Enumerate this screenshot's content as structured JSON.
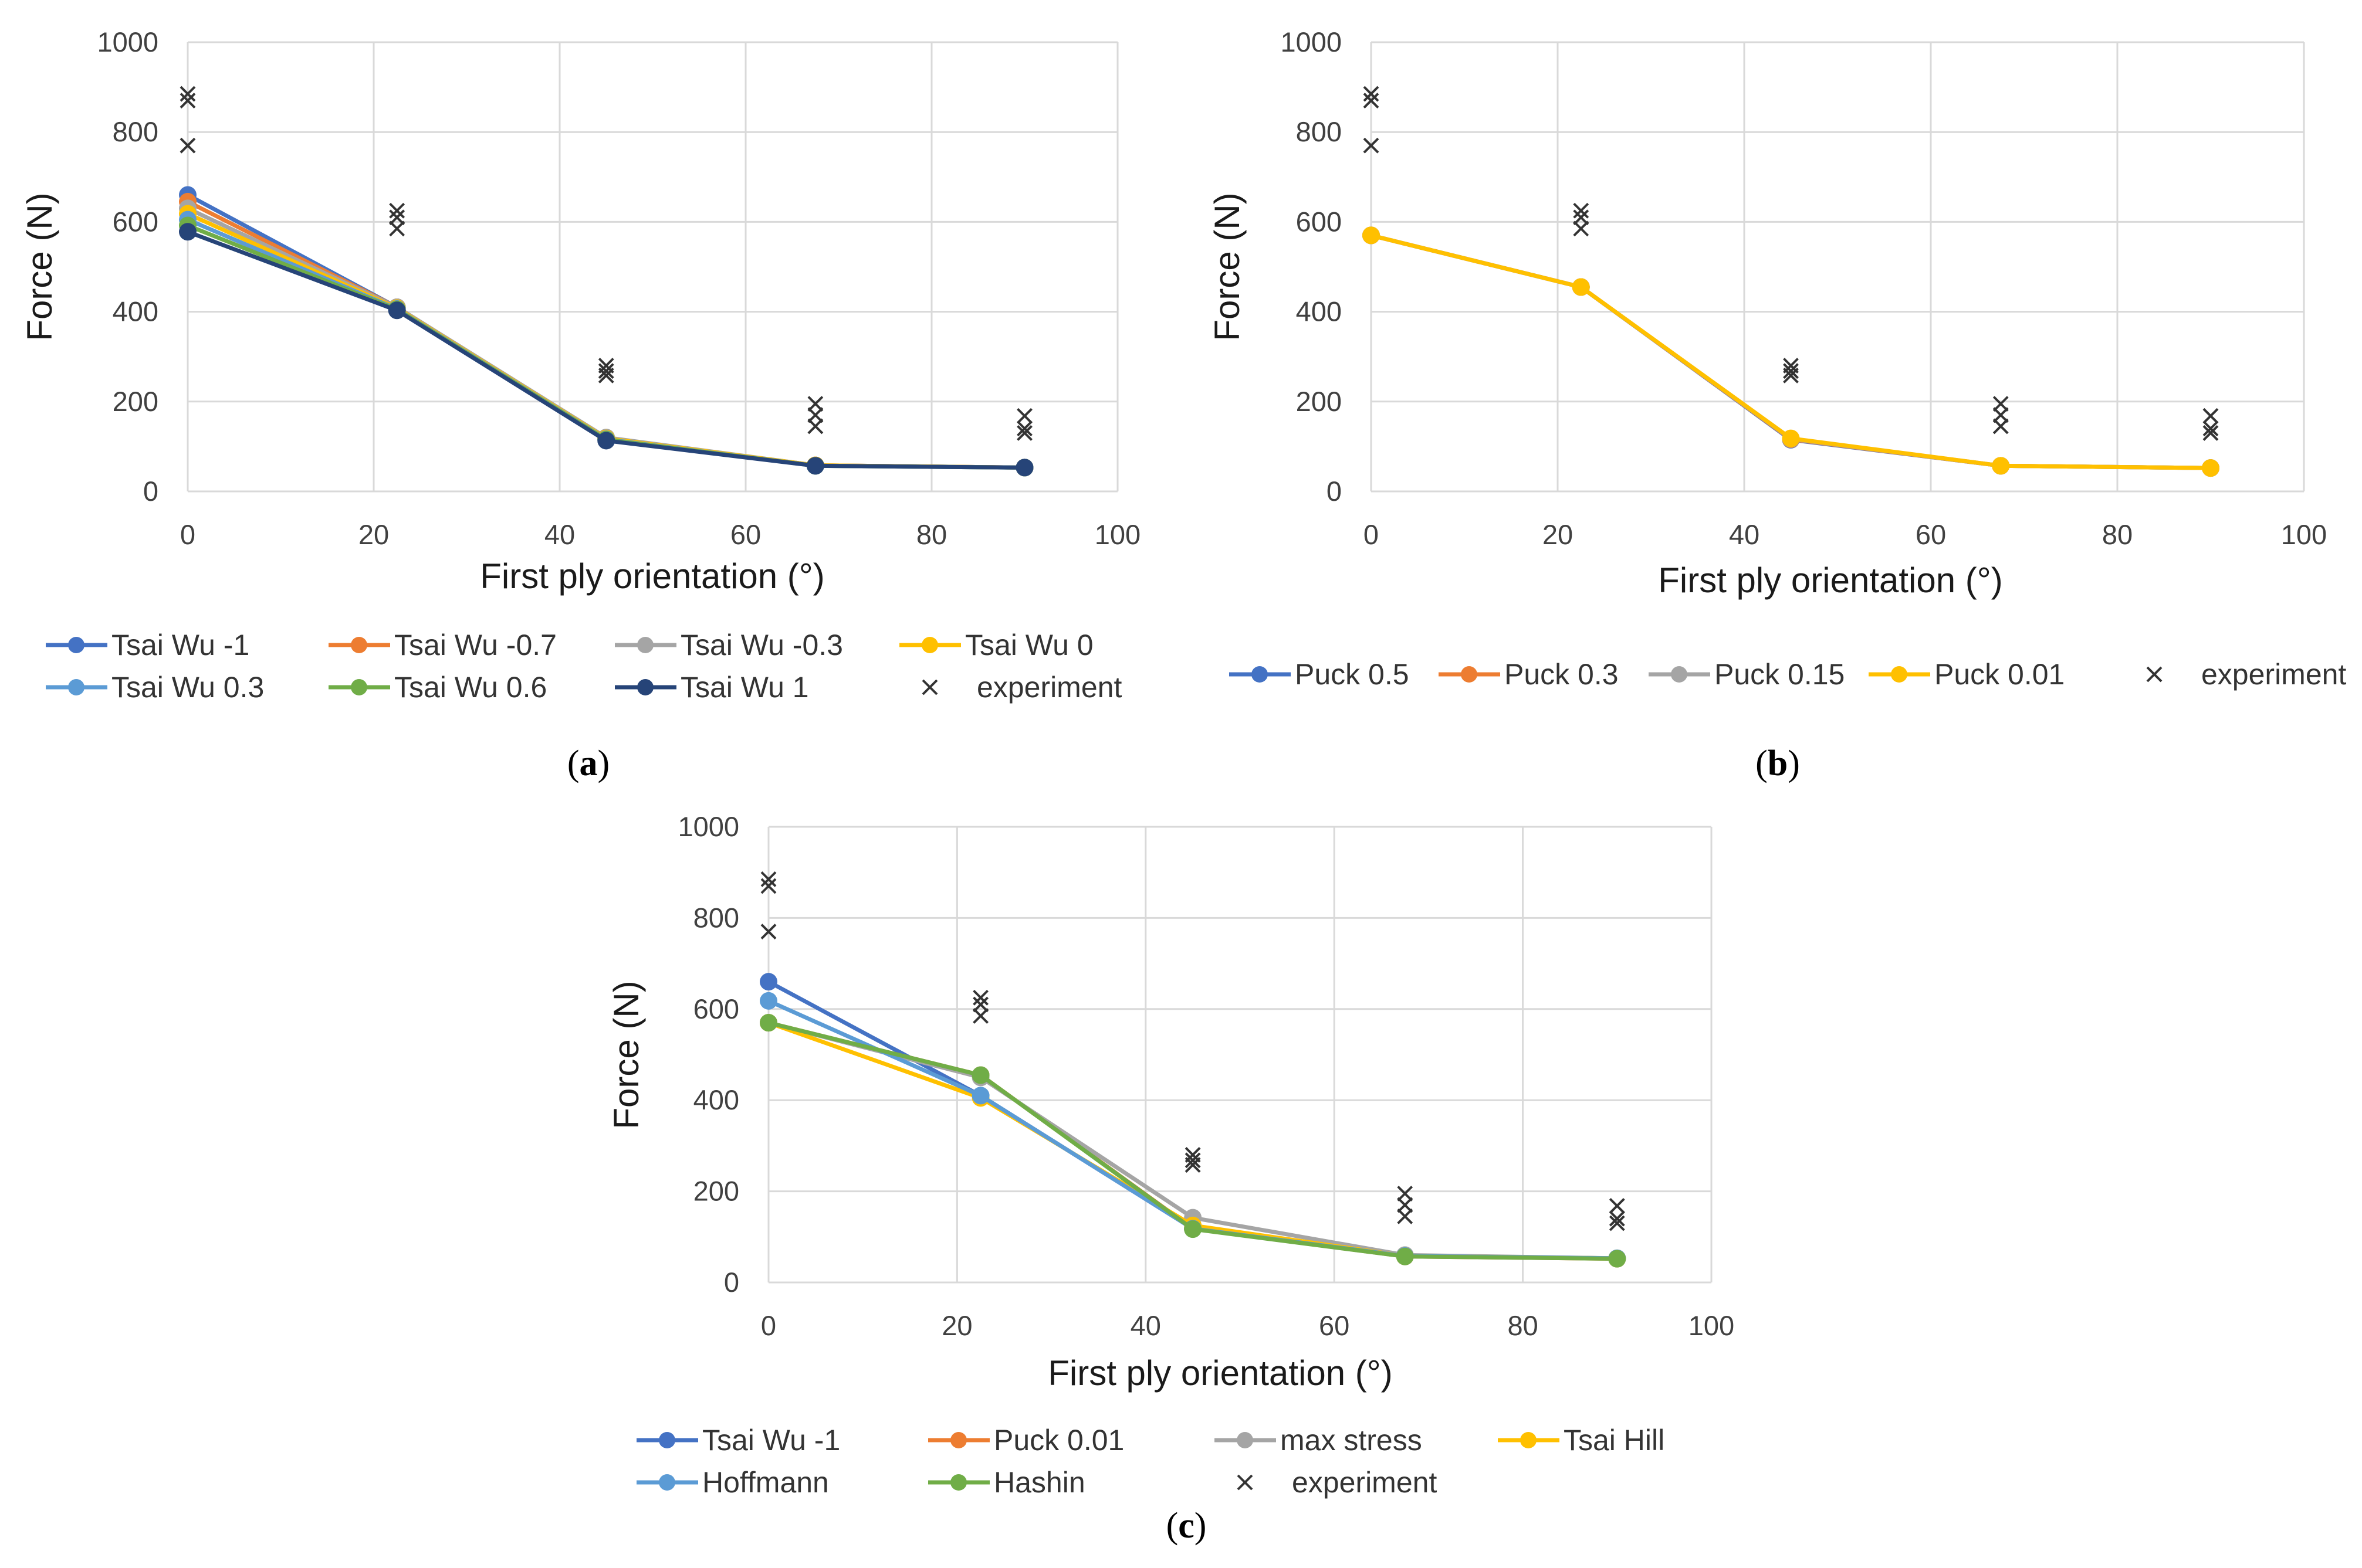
{
  "chart_data": [
    {
      "type": "line",
      "panel_label": "a",
      "xlabel": "First ply orientation (°)",
      "ylabel": "Force (N)",
      "xlim": [
        0,
        100
      ],
      "ylim": [
        0,
        1000
      ],
      "xticks": [
        0,
        20,
        40,
        60,
        80,
        100
      ],
      "yticks": [
        0,
        200,
        400,
        600,
        800,
        1000
      ],
      "grid": true,
      "legend_position": "bottom",
      "x": [
        0,
        22.5,
        45,
        67.5,
        90
      ],
      "series": [
        {
          "name": "Tsai Wu -1",
          "color": "#4472C4",
          "values": [
            660,
            410,
            118,
            58,
            53
          ]
        },
        {
          "name": "Tsai Wu -0.7",
          "color": "#ED7D31",
          "values": [
            645,
            410,
            118,
            58,
            53
          ]
        },
        {
          "name": "Tsai Wu -0.3",
          "color": "#A5A5A5",
          "values": [
            630,
            410,
            120,
            58,
            53
          ]
        },
        {
          "name": "Tsai Wu 0",
          "color": "#FFC000",
          "values": [
            618,
            408,
            118,
            58,
            53
          ]
        },
        {
          "name": "Tsai Wu 0.3",
          "color": "#5B9BD5",
          "values": [
            605,
            406,
            116,
            57,
            53
          ]
        },
        {
          "name": "Tsai Wu 0.6",
          "color": "#70AD47",
          "values": [
            592,
            405,
            115,
            57,
            53
          ]
        },
        {
          "name": "Tsai Wu 1",
          "color": "#264478",
          "values": [
            578,
            403,
            113,
            57,
            53
          ]
        }
      ],
      "experiment": {
        "name": "experiment",
        "marker": "×",
        "points": [
          {
            "x": 0,
            "y": 885
          },
          {
            "x": 0,
            "y": 870
          },
          {
            "x": 0,
            "y": 770
          },
          {
            "x": 22.5,
            "y": 625
          },
          {
            "x": 22.5,
            "y": 610
          },
          {
            "x": 22.5,
            "y": 585
          },
          {
            "x": 45,
            "y": 280
          },
          {
            "x": 45,
            "y": 268
          },
          {
            "x": 45,
            "y": 258
          },
          {
            "x": 67.5,
            "y": 195
          },
          {
            "x": 67.5,
            "y": 170
          },
          {
            "x": 67.5,
            "y": 145
          },
          {
            "x": 90,
            "y": 168
          },
          {
            "x": 90,
            "y": 140
          },
          {
            "x": 90,
            "y": 130
          }
        ]
      }
    },
    {
      "type": "line",
      "panel_label": "b",
      "xlabel": "First ply orientation (°)",
      "ylabel": "Force (N)",
      "xlim": [
        0,
        100
      ],
      "ylim": [
        0,
        1000
      ],
      "xticks": [
        0,
        20,
        40,
        60,
        80,
        100
      ],
      "yticks": [
        0,
        200,
        400,
        600,
        800,
        1000
      ],
      "grid": true,
      "legend_position": "bottom",
      "x": [
        0,
        22.5,
        45,
        67.5,
        90
      ],
      "series": [
        {
          "name": "Puck 0.5",
          "color": "#4472C4",
          "values": [
            570,
            455,
            115,
            57,
            52
          ]
        },
        {
          "name": "Puck 0.3",
          "color": "#ED7D31",
          "values": [
            570,
            455,
            116,
            57,
            52
          ]
        },
        {
          "name": "Puck 0.15",
          "color": "#A5A5A5",
          "values": [
            570,
            455,
            117,
            57,
            52
          ]
        },
        {
          "name": "Puck 0.01",
          "color": "#FFC000",
          "values": [
            570,
            455,
            118,
            57,
            52
          ]
        }
      ],
      "experiment": {
        "name": "experiment",
        "marker": "×",
        "points": [
          {
            "x": 0,
            "y": 885
          },
          {
            "x": 0,
            "y": 870
          },
          {
            "x": 0,
            "y": 770
          },
          {
            "x": 22.5,
            "y": 625
          },
          {
            "x": 22.5,
            "y": 610
          },
          {
            "x": 22.5,
            "y": 585
          },
          {
            "x": 45,
            "y": 280
          },
          {
            "x": 45,
            "y": 268
          },
          {
            "x": 45,
            "y": 258
          },
          {
            "x": 67.5,
            "y": 195
          },
          {
            "x": 67.5,
            "y": 170
          },
          {
            "x": 67.5,
            "y": 145
          },
          {
            "x": 90,
            "y": 168
          },
          {
            "x": 90,
            "y": 140
          },
          {
            "x": 90,
            "y": 130
          }
        ]
      }
    },
    {
      "type": "line",
      "panel_label": "c",
      "xlabel": "First ply orientation (°)",
      "ylabel": "Force (N)",
      "xlim": [
        0,
        100
      ],
      "ylim": [
        0,
        1000
      ],
      "xticks": [
        0,
        20,
        40,
        60,
        80,
        100
      ],
      "yticks": [
        0,
        200,
        400,
        600,
        800,
        1000
      ],
      "grid": true,
      "legend_position": "bottom",
      "x": [
        0,
        22.5,
        45,
        67.5,
        90
      ],
      "series": [
        {
          "name": "Tsai Wu -1",
          "color": "#4472C4",
          "values": [
            660,
            410,
            118,
            58,
            53
          ]
        },
        {
          "name": "Puck 0.01",
          "color": "#ED7D31",
          "values": [
            570,
            455,
            118,
            57,
            52
          ]
        },
        {
          "name": "max stress",
          "color": "#A5A5A5",
          "values": [
            570,
            450,
            142,
            60,
            53
          ]
        },
        {
          "name": "Tsai Hill",
          "color": "#FFC000",
          "values": [
            570,
            405,
            125,
            58,
            53
          ]
        },
        {
          "name": "Hoffmann",
          "color": "#5B9BD5",
          "values": [
            618,
            410,
            118,
            58,
            53
          ]
        },
        {
          "name": "Hashin",
          "color": "#70AD47",
          "values": [
            570,
            455,
            117,
            57,
            52
          ]
        }
      ],
      "experiment": {
        "name": "experiment",
        "marker": "×",
        "points": [
          {
            "x": 0,
            "y": 885
          },
          {
            "x": 0,
            "y": 870
          },
          {
            "x": 0,
            "y": 770
          },
          {
            "x": 22.5,
            "y": 625
          },
          {
            "x": 22.5,
            "y": 610
          },
          {
            "x": 22.5,
            "y": 585
          },
          {
            "x": 45,
            "y": 280
          },
          {
            "x": 45,
            "y": 268
          },
          {
            "x": 45,
            "y": 258
          },
          {
            "x": 67.5,
            "y": 195
          },
          {
            "x": 67.5,
            "y": 170
          },
          {
            "x": 67.5,
            "y": 145
          },
          {
            "x": 90,
            "y": 168
          },
          {
            "x": 90,
            "y": 140
          },
          {
            "x": 90,
            "y": 130
          }
        ]
      }
    }
  ]
}
